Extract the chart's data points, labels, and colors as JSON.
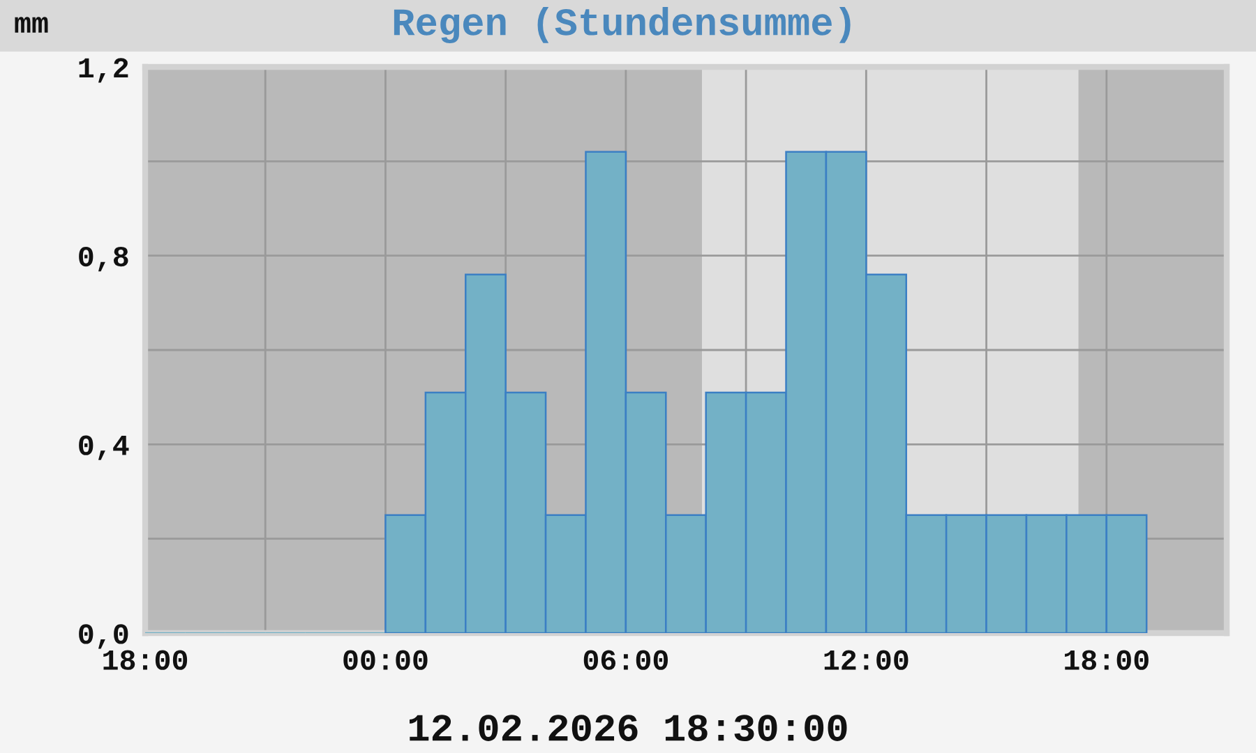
{
  "chart_data": {
    "type": "histogram",
    "title": "Regen (Stundensumme)",
    "ylabel": "mm",
    "annotations": [
      "12.02.2026 18:30:00"
    ],
    "bins": [
      "2026-02-11T18:00",
      "2026-02-11T19:00",
      "2026-02-11T20:00",
      "2026-02-11T21:00",
      "2026-02-11T22:00",
      "2026-02-11T23:00",
      "2026-02-12T00:00",
      "2026-02-12T01:00",
      "2026-02-12T02:00",
      "2026-02-12T03:00",
      "2026-02-12T04:00",
      "2026-02-12T05:00",
      "2026-02-12T06:00",
      "2026-02-12T07:00",
      "2026-02-12T08:00",
      "2026-02-12T09:00",
      "2026-02-12T10:00",
      "2026-02-12T11:00",
      "2026-02-12T12:00",
      "2026-02-12T13:00",
      "2026-02-12T14:00",
      "2026-02-12T15:00",
      "2026-02-12T16:00",
      "2026-02-12T17:00",
      "2026-02-12T18:00",
      "2026-02-12T19:00"
    ],
    "values": [
      0,
      0,
      0,
      0,
      0,
      0,
      0.25,
      0.51,
      0.76,
      0.51,
      0.25,
      1.02,
      0.51,
      0.25,
      0.51,
      0.51,
      1.02,
      1.02,
      0.76,
      0.25,
      0.25,
      0.25,
      0.25,
      0.25,
      0.25
    ],
    "color": "#73b1c6",
    "xlim": [
      "2026-02-11T18:00",
      "2026-02-12T21:00"
    ],
    "xticks": [
      {
        "value": "2026-02-11T18:00",
        "label": "18:00"
      },
      {
        "value": "2026-02-11T21:00",
        "label": null
      },
      {
        "value": "2026-02-12T00:00",
        "label": "00:00"
      },
      {
        "value": "2026-02-12T03:00",
        "label": null
      },
      {
        "value": "2026-02-12T06:00",
        "label": "06:00"
      },
      {
        "value": "2026-02-12T09:00",
        "label": null
      },
      {
        "value": "2026-02-12T12:00",
        "label": "12:00"
      },
      {
        "value": "2026-02-12T15:00",
        "label": null
      },
      {
        "value": "2026-02-12T18:00",
        "label": "18:00"
      }
    ],
    "ylim": [
      0,
      1.2
    ],
    "yticks": [
      {
        "value": 0,
        "label": "0,0"
      },
      {
        "value": 0.2,
        "label": null
      },
      {
        "value": 0.4,
        "label": "0,4"
      },
      {
        "value": 0.6,
        "label": null
      },
      {
        "value": 0.8,
        "label": "0,8"
      },
      {
        "value": 1.0,
        "label": null
      },
      {
        "value": 1.2,
        "label": "1,2"
      }
    ],
    "grid": true,
    "bands": [
      {
        "axis": "x",
        "from": "2026-02-12T07:54",
        "to": "2026-02-12T17:18",
        "color": "#dfdfdf"
      }
    ]
  }
}
